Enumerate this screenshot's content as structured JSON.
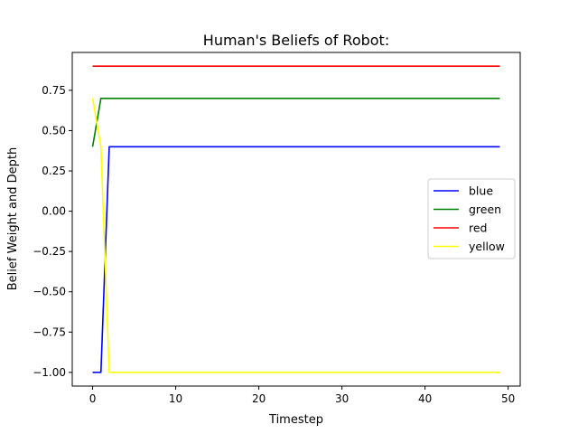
{
  "chart_data": {
    "type": "line",
    "title": "Human's Beliefs of Robot:",
    "xlabel": "Timestep",
    "ylabel": "Belief Weight and Depth",
    "xlim": [
      -2.45,
      51.45
    ],
    "ylim": [
      -1.085,
      0.985
    ],
    "xticks": [
      0,
      10,
      20,
      30,
      40,
      50
    ],
    "yticks": [
      -1.0,
      -0.75,
      -0.5,
      -0.25,
      0.0,
      0.25,
      0.5,
      0.75
    ],
    "ytick_labels": [
      "−1.00",
      "−0.75",
      "−0.50",
      "−0.25",
      "0.00",
      "0.25",
      "0.50",
      "0.75"
    ],
    "grid": false,
    "legend_position": "center-right",
    "series": [
      {
        "name": "blue",
        "color": "#0000ff",
        "x": [
          0,
          1,
          2,
          49
        ],
        "y": [
          -1.0,
          -1.0,
          0.4,
          0.4
        ]
      },
      {
        "name": "green",
        "color": "#008000",
        "x": [
          0,
          1,
          49
        ],
        "y": [
          0.4,
          0.7,
          0.7
        ]
      },
      {
        "name": "red",
        "color": "#ff0000",
        "x": [
          0,
          49
        ],
        "y": [
          0.9,
          0.9
        ]
      },
      {
        "name": "yellow",
        "color": "#ffff00",
        "x": [
          0,
          1,
          2,
          49
        ],
        "y": [
          0.7,
          0.4,
          -1.0,
          -1.0
        ]
      }
    ]
  }
}
